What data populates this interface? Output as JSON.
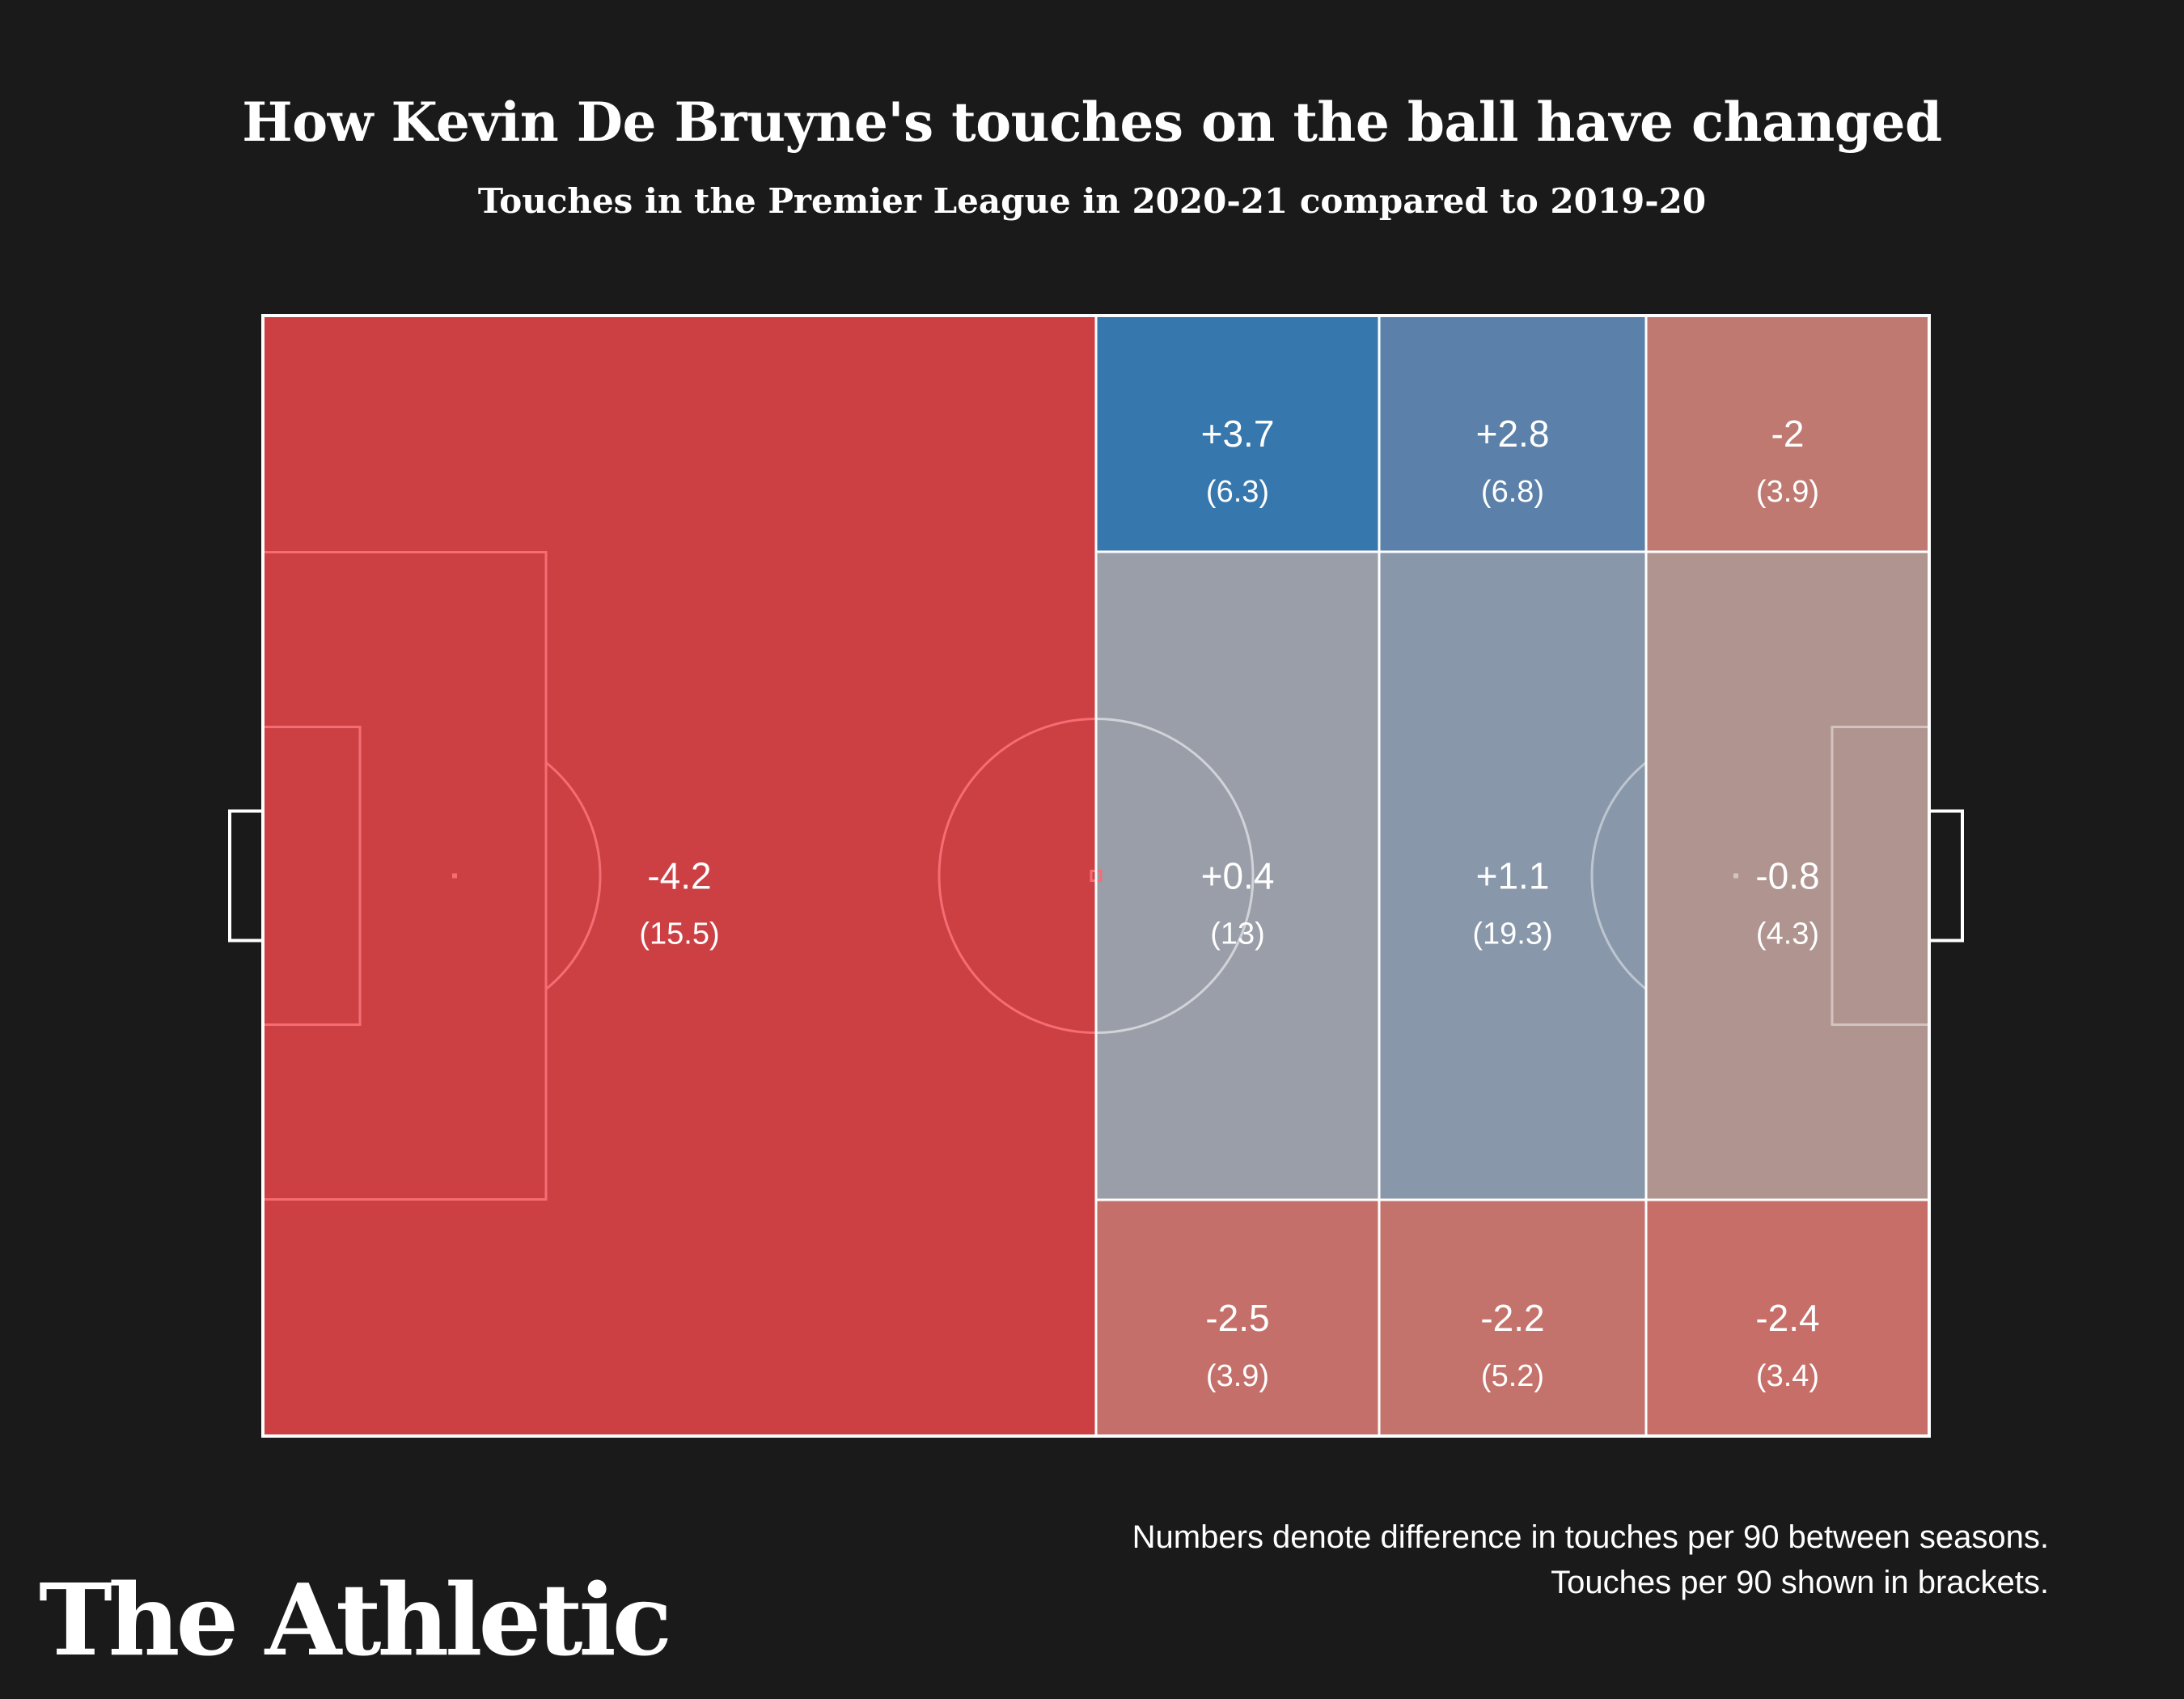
{
  "header": {
    "title": "How Kevin De Bruyne's touches on the ball have changed",
    "subtitle": "Touches in the Premier League in 2020-21 compared to 2019-20"
  },
  "footer": {
    "note_line1": "Numbers denote difference in touches per 90 between seasons.",
    "note_line2": "Touches per 90 shown in brackets.",
    "logo": "The Athletic"
  },
  "colors": {
    "background": "#1a1a1a",
    "own_half": "#cc4044",
    "pitch_line": "#ffffff",
    "own_half_line": "#f56d72"
  },
  "chart_data": {
    "type": "heatmap",
    "title": "How Kevin De Bruyne's touches on the ball have changed",
    "subtitle": "Touches in the Premier League in 2020-21 compared to 2019-20",
    "zones": [
      {
        "id": "own-half",
        "area": "own half",
        "diff": "-4.2",
        "per90": "(15.5)",
        "color": "#cc4044"
      },
      {
        "id": "left-mid-top",
        "area": "opposition half, first third, top channel",
        "diff": "+3.7",
        "per90": "(6.3)",
        "color": "#3677ad"
      },
      {
        "id": "center-mid-top",
        "area": "opposition half, second third, top channel",
        "diff": "+2.8",
        "per90": "(6.8)",
        "color": "#5b80a9"
      },
      {
        "id": "right-mid-top",
        "area": "opposition half, final third, top channel",
        "diff": "-2",
        "per90": "(3.9)",
        "color": "#bf7970"
      },
      {
        "id": "left-mid-middle",
        "area": "opposition half, first third, central channel",
        "diff": "+0.4",
        "per90": "(13)",
        "color": "#9a9ea8"
      },
      {
        "id": "center-mid-middle",
        "area": "opposition half, second third, central channel",
        "diff": "+1.1",
        "per90": "(19.3)",
        "color": "#8897a9"
      },
      {
        "id": "right-mid-middle",
        "area": "opposition half, final third, central channel",
        "diff": "-0.8",
        "per90": "(4.3)",
        "color": "#b0948f"
      },
      {
        "id": "left-mid-bottom",
        "area": "opposition half, first third, bottom channel",
        "diff": "-2.5",
        "per90": "(3.9)",
        "color": "#c46f69"
      },
      {
        "id": "center-mid-bottom",
        "area": "opposition half, second third, bottom channel",
        "diff": "-2.2",
        "per90": "(5.2)",
        "color": "#c3736b"
      },
      {
        "id": "right-mid-bottom",
        "area": "opposition half, final third, bottom channel",
        "diff": "-2.4",
        "per90": "(3.4)",
        "color": "#c66e67"
      }
    ]
  }
}
